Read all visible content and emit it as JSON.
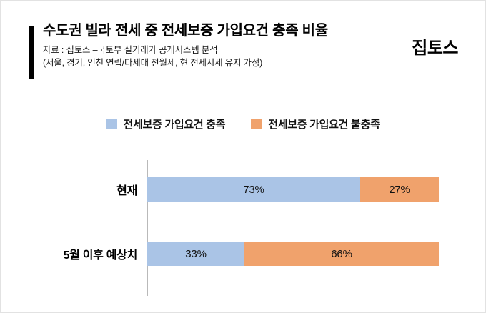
{
  "header": {
    "title": "수도권 빌라 전세 중 전세보증 가입요건 충족 비율",
    "source_line1": "자료 : 집토스 –국토부 실거래가 공개시스템 분석",
    "source_line2": "(서울, 경기, 인천 연립/다세대 전월세, 현 전세시세 유지 가정)",
    "logo": "집토스"
  },
  "legend": [
    {
      "label": "전세보증 가입요건 충족",
      "color": "#aac4e6"
    },
    {
      "label": "전세보증 가입요건 불충족",
      "color": "#f0a26c"
    }
  ],
  "chart_data": {
    "type": "bar",
    "orientation": "horizontal",
    "stacked": true,
    "unit": "%",
    "title": "수도권 빌라 전세 중 전세보증 가입요건 충족 비율",
    "categories": [
      "현재",
      "5월 이후 예상치"
    ],
    "series": [
      {
        "name": "전세보증 가입요건 충족",
        "color": "#aac4e6",
        "values": [
          73,
          33
        ]
      },
      {
        "name": "전세보증 가입요건 불충족",
        "color": "#f0a26c",
        "values": [
          27,
          66
        ]
      }
    ],
    "rows": [
      {
        "category": "현재",
        "segments": [
          {
            "value": 73,
            "label": "73%"
          },
          {
            "value": 27,
            "label": "27%"
          }
        ]
      },
      {
        "category": "5월 이후 예상치",
        "segments": [
          {
            "value": 33,
            "label": "33%"
          },
          {
            "value": 66,
            "label": "66%"
          }
        ]
      }
    ],
    "xlim": [
      0,
      100
    ],
    "grid": false,
    "legend_position": "top"
  }
}
